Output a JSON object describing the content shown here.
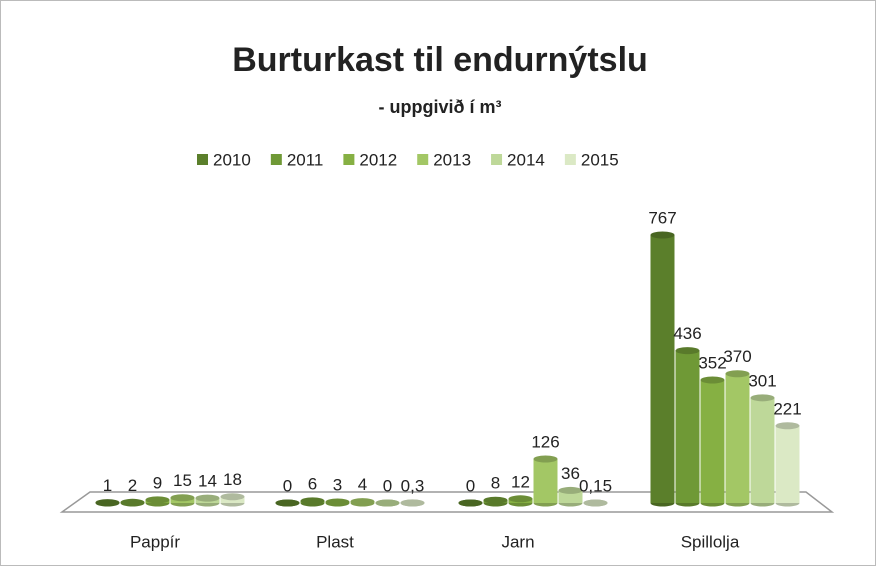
{
  "chart_data": {
    "type": "bar",
    "title": "Burturkast til endurnýtslu",
    "subtitle": "- uppgivið í m³",
    "categories": [
      "Pappír",
      "Plast",
      "Jarn",
      "Spillolja"
    ],
    "series": [
      {
        "name": "2010",
        "color": "#5b7f2b",
        "values": [
          1,
          0,
          0,
          767
        ]
      },
      {
        "name": "2011",
        "color": "#6f9936",
        "values": [
          2,
          6,
          8,
          436
        ]
      },
      {
        "name": "2012",
        "color": "#86b043",
        "values": [
          9,
          3,
          12,
          352
        ]
      },
      {
        "name": "2013",
        "color": "#a3c765",
        "values": [
          15,
          4,
          126,
          370
        ]
      },
      {
        "name": "2014",
        "color": "#bed899",
        "values": [
          14,
          0,
          36,
          301
        ]
      },
      {
        "name": "2015",
        "color": "#dbe9c5",
        "values": [
          18,
          0.3,
          0.15,
          221
        ],
        "value_labels": [
          "18",
          "0,3",
          "0,15",
          "221"
        ]
      }
    ]
  }
}
